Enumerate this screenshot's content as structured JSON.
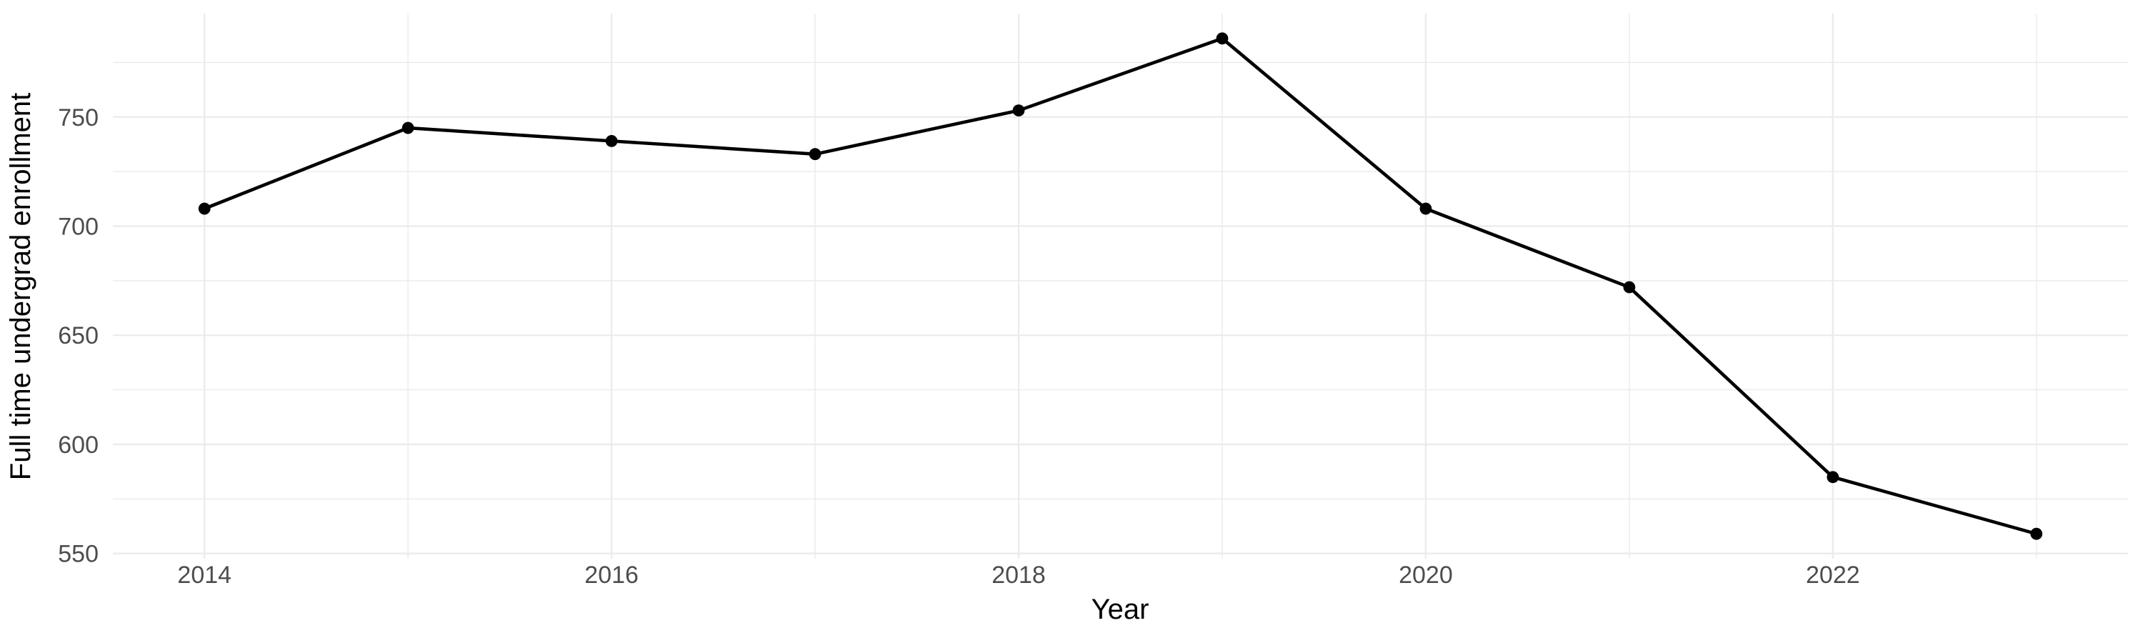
{
  "chart_data": {
    "type": "line",
    "title": "",
    "xlabel": "Year",
    "ylabel": "Full time undergrad enrollment",
    "x": [
      2014,
      2015,
      2016,
      2017,
      2018,
      2019,
      2020,
      2021,
      2022,
      2023
    ],
    "series": [
      {
        "name": "Full time undergrad enrollment",
        "values": [
          708,
          745,
          739,
          733,
          753,
          786,
          708,
          672,
          585,
          559
        ]
      }
    ],
    "x_tick_labels": [
      "2014",
      "2016",
      "2018",
      "2020",
      "2022"
    ],
    "x_ticks": [
      2014,
      2016,
      2018,
      2020,
      2022
    ],
    "x_minor_ticks": [
      2015,
      2017,
      2019,
      2021,
      2023
    ],
    "y_tick_labels": [
      "550",
      "600",
      "650",
      "700",
      "750"
    ],
    "y_ticks": [
      550,
      600,
      650,
      700,
      750
    ],
    "y_minor_ticks": [
      575,
      625,
      675,
      725,
      775
    ],
    "xlim": [
      2013.55,
      2023.45
    ],
    "ylim": [
      547.6,
      797.4
    ],
    "grid": "on",
    "legend_position": "none",
    "colors": {
      "line": "#000000",
      "point": "#000000",
      "grid": "#EBEBEB",
      "tick_text": "#4D4D4D",
      "axis_title_text": "#000000",
      "background": "#FFFFFF"
    }
  }
}
